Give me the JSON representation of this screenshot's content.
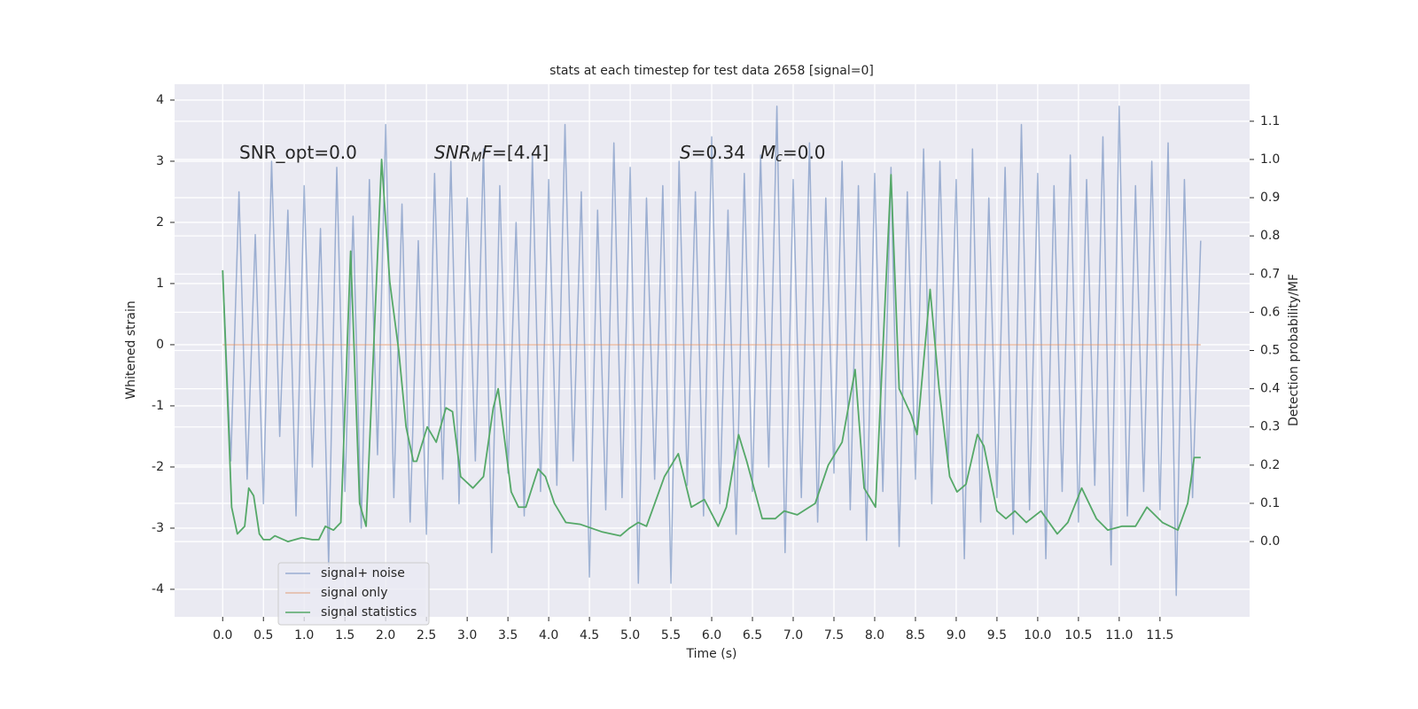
{
  "chart_data": {
    "type": "line",
    "title": "stats at each timestep for test data 2658 [signal=0]",
    "xlabel": "Time (s)",
    "ylabel": "Whitened strain",
    "y2label": "Detection probability/MF",
    "xlim": [
      -0.59,
      12.6
    ],
    "ylim": [
      -4.45,
      4.26
    ],
    "y2lim": [
      -0.197,
      1.197
    ],
    "xticks": [
      {
        "value": 0,
        "label": "0.0"
      },
      0.5,
      {
        "value": 1,
        "label": "1.0"
      },
      1.5,
      {
        "value": 2,
        "label": "2.0"
      },
      2.5,
      {
        "value": 3,
        "label": "3.0"
      },
      3.5,
      {
        "value": 4,
        "label": "4.0"
      },
      4.5,
      {
        "value": 5,
        "label": "5.0"
      },
      5.5,
      {
        "value": 6,
        "label": "6.0"
      },
      6.5,
      {
        "value": 7,
        "label": "7.0"
      },
      7.5,
      {
        "value": 8,
        "label": "8.0"
      },
      8.5,
      {
        "value": 9,
        "label": "9.0"
      },
      9.5,
      {
        "value": 10,
        "label": "10.0"
      },
      10.5,
      {
        "value": 11,
        "label": "11.0"
      },
      11.5
    ],
    "yticks": [
      -4,
      -3,
      -2,
      -1,
      0,
      1,
      2,
      3,
      4
    ],
    "y2ticks": [
      {
        "value": 0,
        "label": "0.0"
      },
      0.1,
      0.2,
      0.3,
      0.4,
      0.5,
      0.6,
      0.7,
      0.8,
      0.9,
      {
        "value": 1,
        "label": "1.0"
      },
      1.1
    ],
    "grid": true,
    "legend": "lower left",
    "annotations": [
      {
        "parts": [
          {
            "text": "SNR_opt=0.0"
          }
        ]
      },
      {
        "parts": [
          {
            "text": "SNR",
            "italic": true
          },
          {
            "text": "M",
            "italic": true,
            "sub": true
          },
          {
            "text": "F",
            "italic": true
          },
          {
            "text": "=[4.4]"
          }
        ]
      },
      {
        "parts": [
          {
            "text": "S",
            "italic": true
          },
          {
            "text": "=0.34"
          }
        ]
      },
      {
        "parts": [
          {
            "text": "M",
            "italic": true
          },
          {
            "text": "c",
            "italic": true,
            "sub": true
          },
          {
            "text": "=0.0"
          }
        ]
      }
    ],
    "series": [
      {
        "name": "signal+ noise",
        "color": "#4c72b0",
        "opacity": 0.5,
        "x": [
          0.0,
          0.1,
          0.2,
          0.3,
          0.4,
          0.5,
          0.6,
          0.7,
          0.8,
          0.9,
          1.0,
          1.1,
          1.2,
          1.3,
          1.4,
          1.5,
          1.6,
          1.7,
          1.8,
          1.9,
          2.0,
          2.1,
          2.2,
          2.3,
          2.4,
          2.5,
          2.6,
          2.7,
          2.8,
          2.9,
          3.0,
          3.1,
          3.2,
          3.3,
          3.4,
          3.5,
          3.6,
          3.7,
          3.8,
          3.9,
          4.0,
          4.1,
          4.2,
          4.3,
          4.4,
          4.5,
          4.6,
          4.7,
          4.8,
          4.9,
          5.0,
          5.1,
          5.2,
          5.3,
          5.4,
          5.5,
          5.6,
          5.7,
          5.8,
          5.9,
          6.0,
          6.1,
          6.2,
          6.3,
          6.4,
          6.5,
          6.6,
          6.7,
          6.8,
          6.9,
          7.0,
          7.1,
          7.2,
          7.3,
          7.4,
          7.5,
          7.6,
          7.7,
          7.8,
          7.9,
          8.0,
          8.1,
          8.2,
          8.3,
          8.4,
          8.5,
          8.6,
          8.7,
          8.8,
          8.9,
          9.0,
          9.1,
          9.2,
          9.3,
          9.4,
          9.5,
          9.6,
          9.7,
          9.8,
          9.9,
          10.0,
          10.1,
          10.2,
          10.3,
          10.4,
          10.5,
          10.6,
          10.7,
          10.8,
          10.9,
          11.0,
          11.1,
          11.2,
          11.3,
          11.4,
          11.5,
          11.6,
          11.7,
          11.8,
          11.9,
          12.0
        ],
        "values": [
          1.2,
          -1.9,
          2.5,
          -2.2,
          1.8,
          -2.6,
          3.0,
          -1.5,
          2.2,
          -2.8,
          2.6,
          -2.0,
          1.9,
          -3.6,
          2.9,
          -2.4,
          2.1,
          -3.0,
          2.7,
          -1.8,
          3.6,
          -2.5,
          2.3,
          -2.9,
          1.7,
          -3.1,
          2.8,
          -2.2,
          3.0,
          -2.6,
          2.4,
          -1.9,
          3.2,
          -3.4,
          2.6,
          -2.1,
          2.0,
          -2.8,
          3.1,
          -2.4,
          2.7,
          -2.3,
          3.6,
          -1.9,
          2.5,
          -3.8,
          2.2,
          -2.7,
          3.3,
          -2.5,
          2.9,
          -3.9,
          2.4,
          -2.2,
          2.6,
          -3.9,
          3.0,
          -2.3,
          2.5,
          -2.8,
          3.4,
          -2.6,
          2.2,
          -3.1,
          2.8,
          -2.4,
          3.1,
          -2.0,
          3.9,
          -3.4,
          2.7,
          -2.5,
          3.3,
          -2.9,
          2.4,
          -2.1,
          3.0,
          -2.7,
          2.6,
          -3.2,
          2.8,
          -2.4,
          2.9,
          -3.3,
          2.5,
          -2.2,
          3.2,
          -2.6,
          3.0,
          -2.0,
          2.7,
          -3.5,
          3.2,
          -2.9,
          2.4,
          -2.5,
          2.9,
          -3.1,
          3.6,
          -2.7,
          2.8,
          -3.5,
          2.6,
          -2.4,
          3.1,
          -2.9,
          2.7,
          -2.3,
          3.4,
          -3.6,
          3.9,
          -2.8,
          2.6,
          -2.4,
          3.0,
          -2.7,
          3.3,
          -4.1,
          2.7,
          -2.5,
          1.7
        ]
      },
      {
        "name": "signal only",
        "color": "#dd8452",
        "opacity": 0.5,
        "x": [
          0.0,
          12.0
        ],
        "values": [
          0,
          0
        ]
      },
      {
        "name": "signal statistics",
        "color": "#55a868",
        "axis": "y2",
        "x": [
          0,
          0.11,
          0.18,
          0.27,
          0.32,
          0.38,
          0.45,
          0.5,
          0.58,
          0.64,
          0.8,
          0.97,
          1.1,
          1.18,
          1.26,
          1.36,
          1.45,
          1.57,
          1.68,
          1.76,
          1.95,
          2.05,
          2.16,
          2.25,
          2.34,
          2.38,
          2.51,
          2.62,
          2.74,
          2.82,
          2.92,
          3.07,
          3.2,
          3.32,
          3.38,
          3.54,
          3.63,
          3.72,
          3.87,
          3.96,
          4.07,
          4.21,
          4.39,
          4.66,
          4.88,
          4.99,
          5.1,
          5.2,
          5.42,
          5.59,
          5.75,
          5.91,
          6.08,
          6.18,
          6.33,
          6.43,
          6.62,
          6.78,
          6.89,
          7.05,
          7.27,
          7.43,
          7.6,
          7.76,
          7.87,
          8.01,
          8.2,
          8.3,
          8.45,
          8.52,
          8.68,
          8.79,
          8.92,
          9.01,
          9.12,
          9.26,
          9.34,
          9.5,
          9.61,
          9.72,
          9.86,
          10.04,
          10.24,
          10.37,
          10.54,
          10.72,
          10.86,
          11.03,
          11.2,
          11.34,
          11.53,
          11.72,
          11.84,
          11.92,
          12.0
        ],
        "values": [
          0.71,
          0.09,
          0.02,
          0.04,
          0.14,
          0.12,
          0.02,
          0.005,
          0.005,
          0.015,
          0,
          0.01,
          0.005,
          0.005,
          0.04,
          0.03,
          0.05,
          0.76,
          0.1,
          0.04,
          1.0,
          0.68,
          0.5,
          0.3,
          0.21,
          0.21,
          0.3,
          0.26,
          0.35,
          0.34,
          0.17,
          0.14,
          0.17,
          0.35,
          0.4,
          0.13,
          0.09,
          0.09,
          0.19,
          0.17,
          0.1,
          0.05,
          0.045,
          0.025,
          0.015,
          0.035,
          0.05,
          0.04,
          0.17,
          0.23,
          0.09,
          0.11,
          0.04,
          0.09,
          0.28,
          0.21,
          0.06,
          0.06,
          0.08,
          0.07,
          0.1,
          0.2,
          0.26,
          0.45,
          0.14,
          0.09,
          0.96,
          0.4,
          0.33,
          0.28,
          0.66,
          0.4,
          0.17,
          0.13,
          0.15,
          0.28,
          0.25,
          0.08,
          0.06,
          0.08,
          0.05,
          0.08,
          0.02,
          0.05,
          0.14,
          0.06,
          0.03,
          0.04,
          0.04,
          0.09,
          0.05,
          0.03,
          0.1,
          0.22,
          0.22
        ]
      }
    ]
  }
}
